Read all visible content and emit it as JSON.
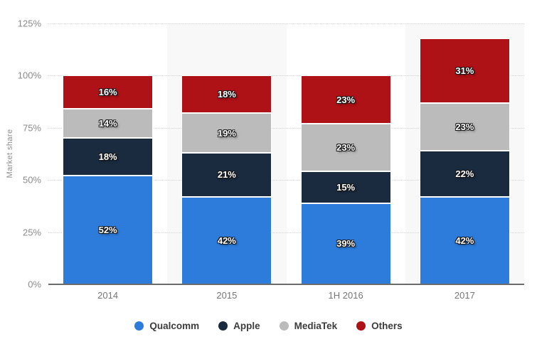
{
  "chart_data": {
    "type": "bar",
    "stacked": true,
    "title": "",
    "ylabel": "Market share",
    "xlabel": "",
    "categories": [
      "2014",
      "2015",
      "1H 2016",
      "2017"
    ],
    "series": [
      {
        "name": "Qualcomm",
        "color": "#2d7cdc",
        "values": [
          52,
          42,
          39,
          42
        ]
      },
      {
        "name": "Apple",
        "color": "#1a2b40",
        "values": [
          18,
          21,
          15,
          22
        ]
      },
      {
        "name": "MediaTek",
        "color": "#bbbbbb",
        "values": [
          14,
          19,
          23,
          23
        ]
      },
      {
        "name": "Others",
        "color": "#ae1116",
        "values": [
          16,
          18,
          23,
          31
        ]
      }
    ],
    "data_label_suffix": "%",
    "ylim": [
      0,
      125
    ],
    "yticks": [
      "0%",
      "25%",
      "50%",
      "75%",
      "100%",
      "125%"
    ],
    "grid": "dotted horizontal",
    "legend_position": "bottom",
    "style": {
      "band_color": "#f8f8f8",
      "grid_color": "#d4d4d4",
      "axis_color": "#6b6b6b",
      "tick_text_color": "#8a8a8a",
      "category_text_color": "#757575",
      "background": "#ffffff"
    }
  }
}
